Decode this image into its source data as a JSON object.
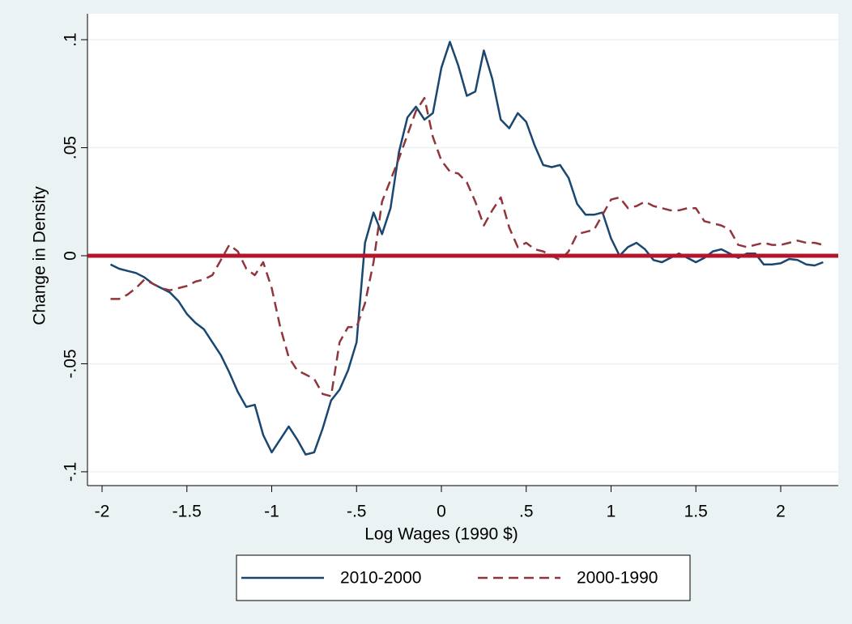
{
  "chart_data": {
    "type": "line",
    "x_label": "Log Wages (1990 $)",
    "y_label": "Change in Density",
    "x": [
      -1.95,
      -1.9,
      -1.85,
      -1.8,
      -1.75,
      -1.7,
      -1.65,
      -1.6,
      -1.55,
      -1.5,
      -1.45,
      -1.4,
      -1.35,
      -1.3,
      -1.25,
      -1.2,
      -1.15,
      -1.1,
      -1.05,
      -1.0,
      -0.95,
      -0.9,
      -0.85,
      -0.8,
      -0.75,
      -0.7,
      -0.65,
      -0.6,
      -0.55,
      -0.5,
      -0.45,
      -0.4,
      -0.35,
      -0.3,
      -0.25,
      -0.2,
      -0.15,
      -0.1,
      -0.05,
      0.0,
      0.05,
      0.1,
      0.15,
      0.2,
      0.25,
      0.3,
      0.35,
      0.4,
      0.45,
      0.5,
      0.55,
      0.6,
      0.65,
      0.7,
      0.75,
      0.8,
      0.85,
      0.9,
      0.95,
      1.0,
      1.05,
      1.1,
      1.15,
      1.2,
      1.25,
      1.3,
      1.35,
      1.4,
      1.45,
      1.5,
      1.55,
      1.6,
      1.65,
      1.7,
      1.75,
      1.8,
      1.85,
      1.9,
      1.95,
      2.0,
      2.05,
      2.1,
      2.15,
      2.2,
      2.25
    ],
    "series": [
      {
        "name": "2010-2000",
        "color": "#1a476f",
        "style": "solid",
        "values": [
          -0.004,
          -0.006,
          -0.007,
          -0.008,
          -0.01,
          -0.013,
          -0.015,
          -0.017,
          -0.021,
          -0.027,
          -0.031,
          -0.034,
          -0.04,
          -0.046,
          -0.054,
          -0.063,
          -0.07,
          -0.069,
          -0.083,
          -0.091,
          -0.085,
          -0.079,
          -0.085,
          -0.092,
          -0.091,
          -0.08,
          -0.067,
          -0.062,
          -0.053,
          -0.04,
          0.006,
          0.02,
          0.01,
          0.022,
          0.048,
          0.064,
          0.069,
          0.063,
          0.066,
          0.087,
          0.099,
          0.088,
          0.074,
          0.076,
          0.095,
          0.082,
          0.063,
          0.059,
          0.066,
          0.062,
          0.051,
          0.042,
          0.041,
          0.042,
          0.036,
          0.024,
          0.019,
          0.019,
          0.02,
          0.008,
          0.0,
          0.004,
          0.006,
          0.003,
          -0.002,
          -0.003,
          -0.001,
          0.001,
          -0.001,
          -0.003,
          -0.001,
          0.002,
          0.003,
          0.001,
          -0.001,
          0.001,
          0.001,
          -0.004,
          -0.004,
          -0.0035,
          -0.0015,
          -0.002,
          -0.004,
          -0.0045,
          -0.003
        ]
      },
      {
        "name": "2000-1990",
        "color": "#90353b",
        "style": "dashed",
        "values": [
          -0.02,
          -0.02,
          -0.018,
          -0.015,
          -0.011,
          -0.013,
          -0.015,
          -0.016,
          -0.015,
          -0.014,
          -0.012,
          -0.011,
          -0.009,
          -0.002,
          0.005,
          0.002,
          -0.006,
          -0.009,
          -0.003,
          -0.015,
          -0.033,
          -0.047,
          -0.053,
          -0.055,
          -0.057,
          -0.064,
          -0.065,
          -0.04,
          -0.033,
          -0.033,
          -0.022,
          -0.003,
          0.025,
          0.035,
          0.045,
          0.056,
          0.067,
          0.073,
          0.055,
          0.044,
          0.039,
          0.038,
          0.034,
          0.025,
          0.014,
          0.021,
          0.027,
          0.013,
          0.004,
          0.006,
          0.003,
          0.002,
          0.0,
          -0.002,
          0.002,
          0.01,
          0.011,
          0.012,
          0.019,
          0.026,
          0.027,
          0.022,
          0.023,
          0.025,
          0.023,
          0.022,
          0.021,
          0.021,
          0.022,
          0.022,
          0.016,
          0.015,
          0.014,
          0.012,
          0.005,
          0.004,
          0.005,
          0.006,
          0.005,
          0.005,
          0.006,
          0.007,
          0.006,
          0.006,
          0.005
        ]
      }
    ],
    "xlim": [
      -2.086,
      2.339
    ],
    "ylim": [
      -0.1064,
      0.112
    ],
    "xticks": [
      -2,
      -1.5,
      -1,
      {
        "value": -0.5,
        "label": "-.5"
      },
      0,
      {
        "value": 0.5,
        "label": ".5"
      },
      1,
      1.5,
      2
    ],
    "yticks": [
      {
        "value": -0.1,
        "label": "-.1"
      },
      {
        "value": -0.05,
        "label": "-.05"
      },
      0,
      {
        "value": 0.05,
        "label": ".05"
      },
      {
        "value": 0.1,
        "label": ".1"
      }
    ],
    "grid": true,
    "reference_line": {
      "value": 0,
      "color": "#b5152b"
    },
    "legend": "bottom"
  }
}
